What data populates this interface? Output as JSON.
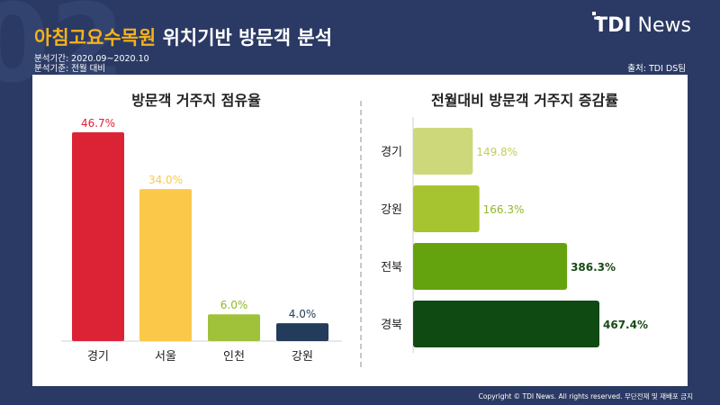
{
  "header": {
    "title_highlight": "아침고요수목원",
    "title_rest": "위치기반 방문객 분석",
    "period": "분석기간: 2020.09~2020.10",
    "basis": "분석기준: 전월 대비",
    "source": "출처: TDI DS팀",
    "logo_bold": "TDI",
    "logo_light": "News",
    "bg_number": "02"
  },
  "footer": {
    "copyright": "Copyright © TDI News. All rights reserved. 무단전재 및 재배포 금지"
  },
  "chart_data": [
    {
      "type": "bar",
      "title": "방문객 거주지 점유율",
      "categories": [
        "경기",
        "서울",
        "인천",
        "강원"
      ],
      "values": [
        46.7,
        34.0,
        6.0,
        4.0
      ],
      "labels": [
        "46.7%",
        "34.0%",
        "6.0%",
        "4.0%"
      ],
      "colors": [
        "#dc2336",
        "#fbc84a",
        "#a0c13a",
        "#243c5c"
      ],
      "label_colors": [
        "#dc2336",
        "#fbc84a",
        "#8fb82a",
        "#243c5c"
      ],
      "xlabel": "",
      "ylabel": "",
      "grid": false,
      "legend": "none"
    },
    {
      "type": "bar",
      "orientation": "horizontal",
      "title": "전월대비 방문객 거주지 증감률",
      "categories": [
        "경기",
        "강원",
        "전북",
        "경북"
      ],
      "values": [
        149.8,
        166.3,
        386.3,
        467.4
      ],
      "labels": [
        "149.8%",
        "166.3%",
        "386.3%",
        "467.4%"
      ],
      "colors": [
        "#cdd87a",
        "#a6c430",
        "#65a30e",
        "#0f4a12"
      ],
      "label_colors": [
        "#c2cd5e",
        "#8fb82a",
        "#184a18",
        "#184a18"
      ],
      "xlabel": "",
      "ylabel": "",
      "grid": false,
      "legend": "none"
    }
  ]
}
